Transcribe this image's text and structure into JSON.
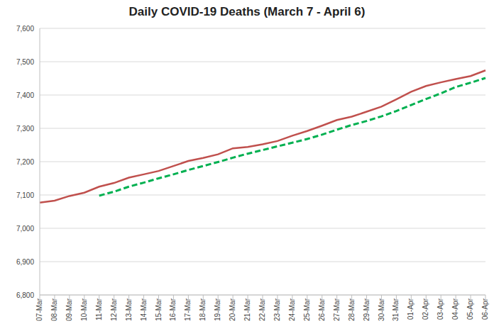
{
  "chart_data": {
    "type": "line",
    "title": "Daily COVID-19 Deaths (March 7 - April 6)",
    "categories": [
      "07-Mar",
      "08-Mar",
      "09-Mar",
      "10-Mar",
      "11-Mar",
      "12-Mar",
      "13-Mar",
      "14-Mar",
      "15-Mar",
      "16-Mar",
      "17-Mar",
      "18-Mar",
      "19-Mar",
      "20-Mar",
      "21-Mar",
      "22-Mar",
      "23-Mar",
      "24-Mar",
      "25-Mar",
      "26-Mar",
      "27-Mar",
      "28-Mar",
      "29-Mar",
      "30-Mar",
      "31-Mar",
      "01-Apr",
      "02-Apr",
      "03-Apr",
      "04-Apr",
      "05-Apr",
      "06-Apr"
    ],
    "series": [
      {
        "color": "#c0504d",
        "line_style": "solid",
        "values": [
          7077,
          7083,
          7097,
          7107,
          7125,
          7136,
          7152,
          7162,
          7172,
          7187,
          7202,
          7211,
          7222,
          7240,
          7244,
          7252,
          7262,
          7278,
          7292,
          7308,
          7325,
          7335,
          7350,
          7365,
          7387,
          7410,
          7427,
          7438,
          7448,
          7457,
          7474
        ]
      },
      {
        "color": "#00b050",
        "line_style": "dashed",
        "values": [
          null,
          null,
          null,
          null,
          7098,
          7110,
          7125,
          7137,
          7150,
          7162,
          7175,
          7187,
          7199,
          7212,
          7224,
          7235,
          7246,
          7257,
          7268,
          7281,
          7296,
          7310,
          7322,
          7336,
          7352,
          7370,
          7388,
          7405,
          7424,
          7437,
          7451
        ]
      }
    ],
    "ylim": [
      6800,
      7600
    ],
    "yticks": [
      {
        "value": 6800,
        "label": "6,800"
      },
      {
        "value": 6900,
        "label": "6,900"
      },
      {
        "value": 7000,
        "label": "7,000"
      },
      {
        "value": 7100,
        "label": "7,100"
      },
      {
        "value": 7200,
        "label": "7,200"
      },
      {
        "value": 7300,
        "label": "7,300"
      },
      {
        "value": 7400,
        "label": "7,400"
      },
      {
        "value": 7500,
        "label": "7,500"
      },
      {
        "value": 7600,
        "label": "7,600"
      }
    ],
    "grid": true
  }
}
